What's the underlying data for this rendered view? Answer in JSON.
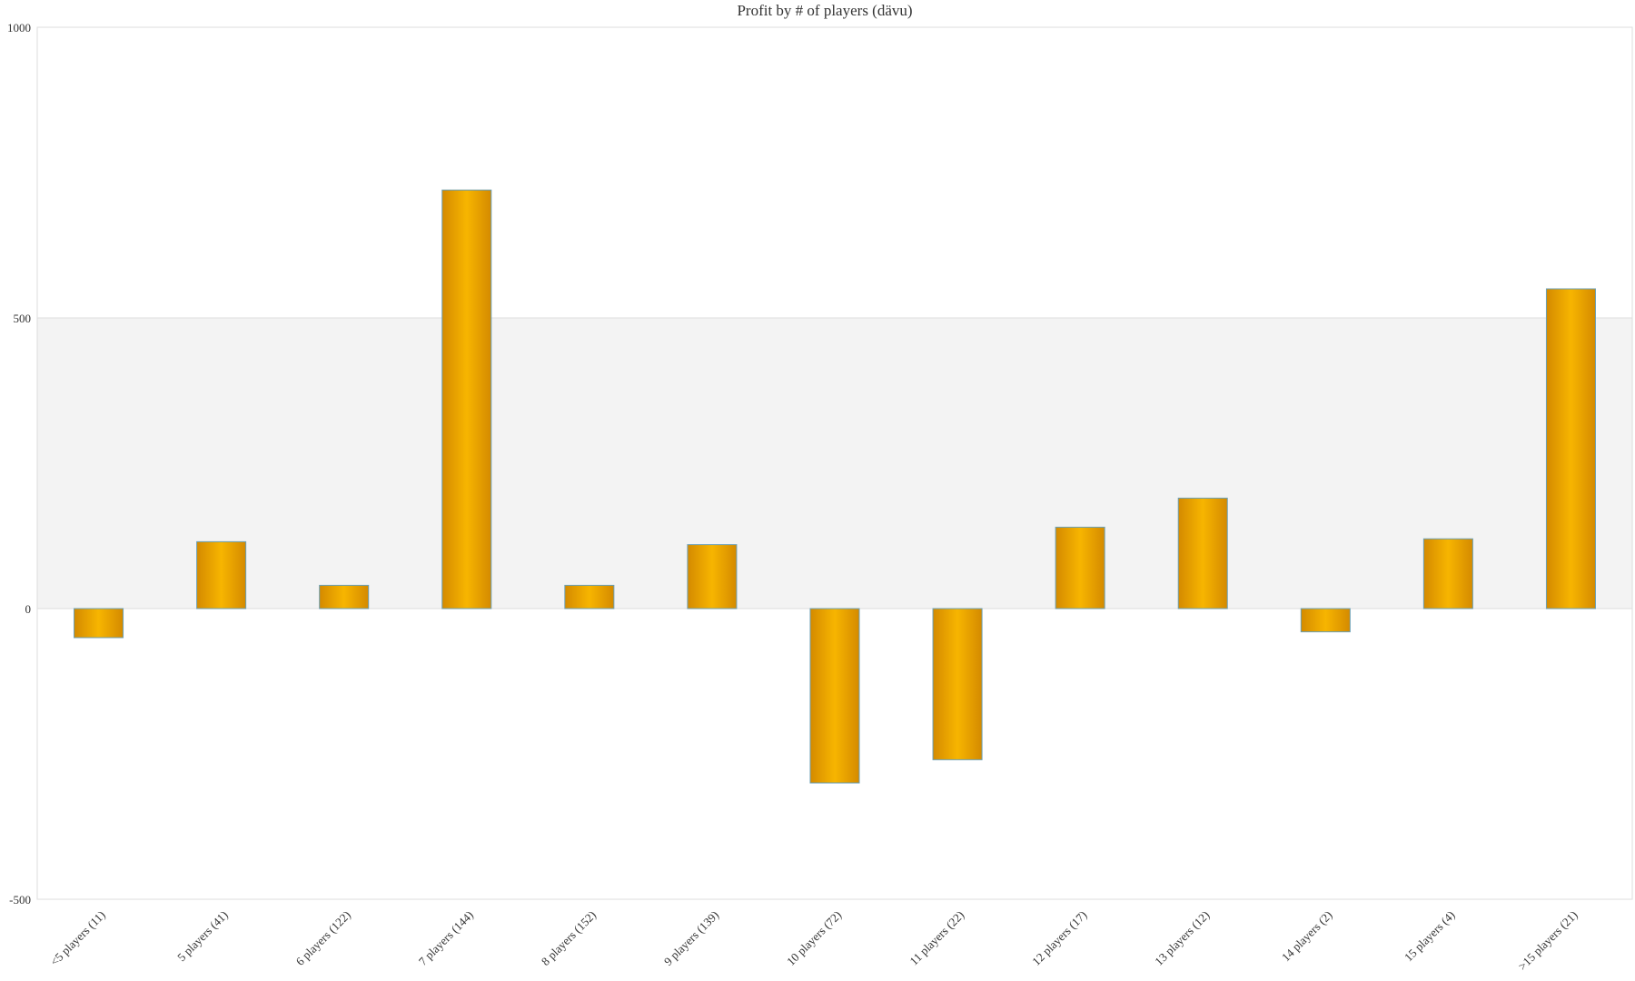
{
  "chart_data": {
    "type": "bar",
    "title": "Profit by # of players  (dävu)",
    "categories": [
      "<5 players (11)",
      "5 players (41)",
      "6 players (122)",
      "7 players (144)",
      "8 players (152)",
      "9 players (139)",
      "10 players (72)",
      "11 players (22)",
      "12 players (17)",
      "13 players (12)",
      "14 players (2)",
      "15 players (4)",
      ">15 players (21)"
    ],
    "values": [
      -50,
      115,
      40,
      720,
      40,
      110,
      -300,
      -260,
      140,
      190,
      -40,
      120,
      550
    ],
    "color": "#f7b500",
    "ylim": [
      -500,
      1000
    ],
    "yticks": [
      -500,
      0,
      500,
      1000
    ],
    "grid": true
  }
}
